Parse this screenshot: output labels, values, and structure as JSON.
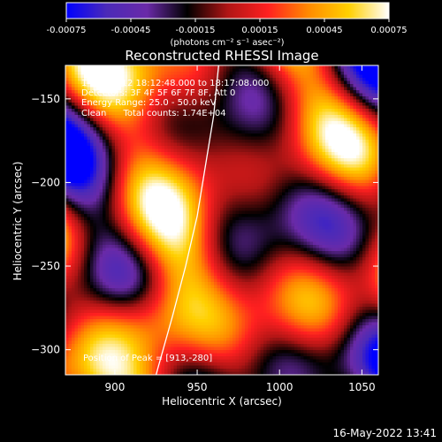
{
  "colors": {
    "background": "#000000",
    "foreground": "#ffffff",
    "colormap_stops": [
      "#0000ff",
      "#4b2ab8",
      "#6a2aa8",
      "#000000",
      "#b01515",
      "#ff2020",
      "#ff8a00",
      "#ffd000",
      "#ffffff"
    ]
  },
  "timestamp": "16-May-2022 13:41",
  "chart_data": {
    "type": "heatmap",
    "title": "Reconstructed RHESSI Image",
    "xlabel": "Heliocentric X (arcsec)",
    "ylabel": "Heliocentric Y (arcsec)",
    "xlim": [
      870,
      1060
    ],
    "ylim": [
      -315,
      -130
    ],
    "x_ticks": [
      900,
      950,
      1000,
      1050
    ],
    "y_ticks": [
      -150,
      -200,
      -250,
      -300
    ],
    "colorbar": {
      "range": [
        -0.00075,
        0.00075
      ],
      "tick_values": [
        -0.00075,
        -0.00045,
        -0.00015,
        0.00015,
        0.00045,
        0.00075
      ],
      "tick_labels": [
        "-0.00075",
        "-0.00045",
        "-0.00015",
        "0.00015",
        "0.00045",
        "0.00075"
      ],
      "unit_label": "(photons cm⁻² s⁻¹ asec⁻²)"
    },
    "annotations": [
      "1-Dec-2012 18:12:48.000 to 18:17:08.000",
      "Detectors: 3F 4F 5F 6F 7F 8F, Att 0",
      "Energy Range: 25.0 - 50.0 keV",
      "Clean      Total counts: 1.74E+04"
    ],
    "peak_label": "Position of Peak = [913,-280]",
    "peak_position": [
      913,
      -280
    ],
    "limb_curve": [
      [
        925,
        -315
      ],
      [
        935,
        -280
      ],
      [
        943,
        -250
      ],
      [
        950,
        -220
      ],
      [
        955,
        -190
      ],
      [
        960,
        -160
      ],
      [
        963,
        -130
      ]
    ]
  }
}
